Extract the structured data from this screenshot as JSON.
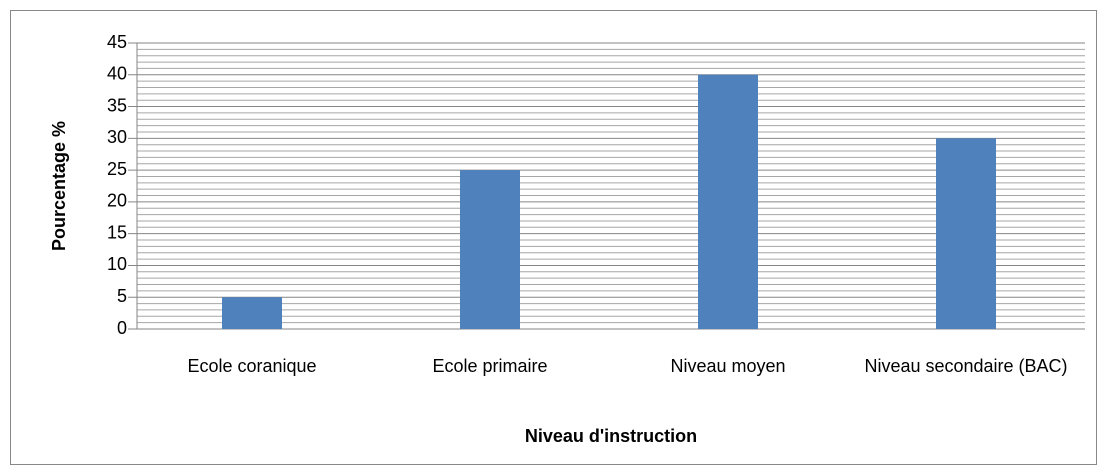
{
  "chart_data": {
    "type": "bar",
    "x_label": "Niveau d'instruction",
    "y_label": "Pourcentage %",
    "categories": [
      "Ecole coranique",
      "Ecole primaire",
      "Niveau moyen",
      "Niveau secondaire (BAC)"
    ],
    "values": [
      5,
      25,
      40,
      30
    ],
    "color": "#4f81bd",
    "ylim": [
      0,
      45
    ],
    "yticks": [
      0,
      5,
      10,
      15,
      20,
      25,
      30,
      35,
      40,
      45
    ],
    "minor_yticks": [
      1,
      2,
      3,
      4,
      6,
      7,
      8,
      9,
      11,
      12,
      13,
      14,
      16,
      17,
      18,
      19,
      21,
      22,
      23,
      24,
      26,
      27,
      28,
      29,
      31,
      32,
      33,
      34,
      36,
      37,
      38,
      39,
      41,
      42,
      43,
      44
    ],
    "grid": true
  }
}
